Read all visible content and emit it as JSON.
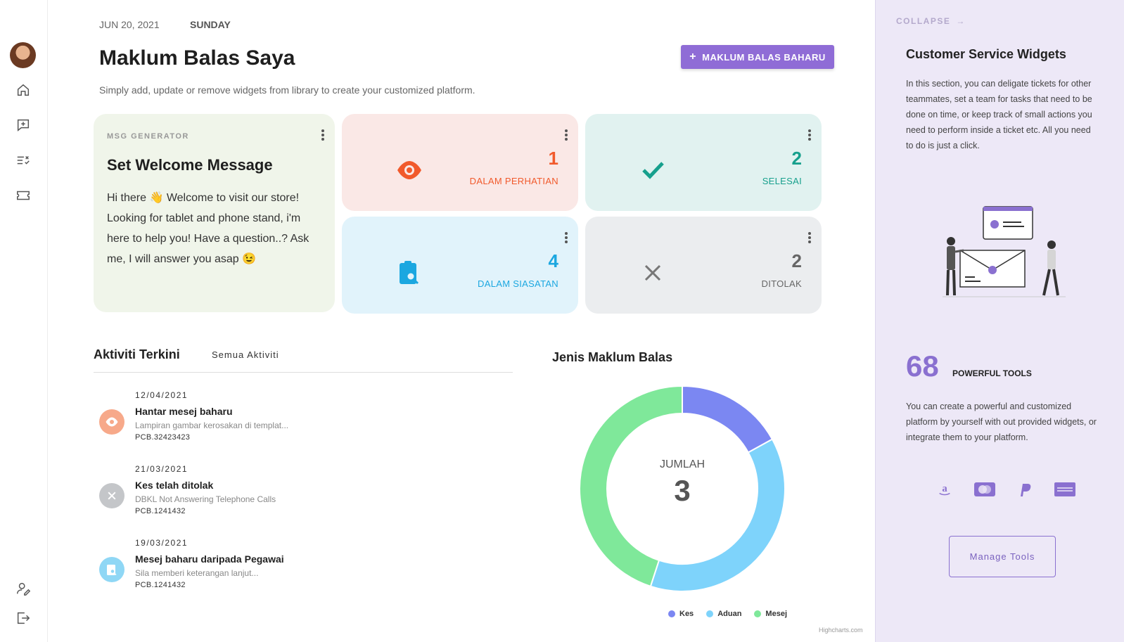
{
  "header": {
    "date": "JUN 20, 2021",
    "day": "SUNDAY",
    "title": "Maklum Balas Saya",
    "subtitle": "Simply add, update or remove widgets from library to create your customized platform.",
    "new_button": "MAKLUM BALAS BAHARU"
  },
  "sidebar": {
    "items": [
      "home-icon",
      "feedback-icon",
      "checklist-icon",
      "ticket-icon"
    ],
    "bottom": [
      "user-edit-icon",
      "logout-icon"
    ]
  },
  "msg_card": {
    "label": "MSG GENERATOR",
    "title": "Set Welcome Message",
    "body": "Hi there 👋 Welcome to visit our store! Looking for tablet and phone stand, i'm here to help you! Have a question..? Ask me, I will answer you asap 😉"
  },
  "stats": [
    {
      "value": "1",
      "label": "DALAM PERHATIAN",
      "color": "#f15a2c",
      "bg": "#fae8e6",
      "icon": "eye-icon"
    },
    {
      "value": "2",
      "label": "SELESAI",
      "color": "#17a08d",
      "bg": "#e1f2f0",
      "icon": "check-icon"
    },
    {
      "value": "4",
      "label": "DALAM SIASATAN",
      "color": "#1ba7e0",
      "bg": "#e1f3fb",
      "icon": "clipboard-search-icon"
    },
    {
      "value": "2",
      "label": "DITOLAK",
      "color": "#666666",
      "bg": "#ebedef",
      "icon": "close-icon"
    }
  ],
  "activity": {
    "title": "Aktiviti Terkini",
    "tab": "Semua Aktiviti",
    "items": [
      {
        "date": "12/04/2021",
        "title": "Hantar mesej baharu",
        "desc": "Lampiran gambar kerosakan di templat...",
        "ref": "PCB.32423423",
        "icon": "eye-icon",
        "color": "#f7a98a"
      },
      {
        "date": "21/03/2021",
        "title": "Kes telah ditolak",
        "desc": "DBKL Not Answering Telephone Calls",
        "ref": "PCB.1241432",
        "icon": "close-icon",
        "color": "#c4c6c9"
      },
      {
        "date": "19/03/2021",
        "title": "Mesej baharu daripada Pegawai",
        "desc": "Sila memberi keterangan lanjut...",
        "ref": "PCB.1241432",
        "icon": "clipboard-search-icon",
        "color": "#8fd7f5"
      }
    ]
  },
  "chart_section": {
    "title": "Jenis Maklum Balas",
    "center_label": "JUMLAH",
    "center_value": "3",
    "credit": "Highcharts.com"
  },
  "chart_data": {
    "type": "pie",
    "title": "Jenis Maklum Balas",
    "categories": [
      "Kes",
      "Aduan",
      "Mesej"
    ],
    "values": [
      17,
      38,
      45
    ],
    "colors": [
      "#7b87f2",
      "#7ed3fb",
      "#7fe89a"
    ],
    "legend": "bottom"
  },
  "panel": {
    "collapse": "COLLAPSE",
    "title": "Customer Service Widgets",
    "text1": "In this section, you can deligate tickets for other teammates, set a team for tasks that need to be done on time, or keep track of small actions you need to perform inside a ticket etc. All you need to do is just a click.",
    "big_number": "68",
    "big_label": "POWERFUL TOOLS",
    "text2": "You can create a powerful and customized platform by yourself with out provided widgets, or integrate them to your platform.",
    "brands": [
      "amazon-icon",
      "mastercard-icon",
      "paypal-icon",
      "amex-icon"
    ],
    "manage_button": "Manage Tools",
    "accent": "#8a70d0"
  }
}
